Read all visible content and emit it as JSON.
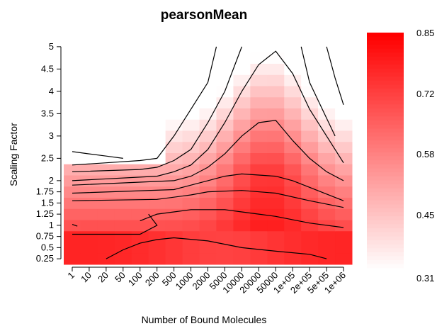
{
  "chart_data": {
    "type": "heatmap",
    "title": "pearsonMean",
    "xlabel": "Number of Bound Molecules",
    "ylabel": "Scaling Factor",
    "x_categories": [
      "1",
      "10",
      "20",
      "50",
      "100",
      "200",
      "500",
      "1000",
      "2000",
      "5000",
      "10000",
      "20000",
      "50000",
      "1e+05",
      "2e+05",
      "5e+05",
      "1e+06"
    ],
    "y_categories": [
      "0.25",
      "0.5",
      "0.75",
      "1",
      "1.25",
      "1.5",
      "1.75",
      "2",
      "2.25",
      "2.5",
      "2.75",
      "3",
      "3.25",
      "3.5",
      "3.75",
      "4",
      "4.25",
      "4.5",
      "4.75",
      "5"
    ],
    "y_tick_labels": [
      "0.25",
      "0.5",
      "0.75",
      "1",
      "1.25",
      "1.5",
      "1.75",
      "2",
      "2.5",
      "3",
      "3.5",
      "4",
      "4.5",
      "5"
    ],
    "y_tick_values": [
      0.25,
      0.5,
      0.75,
      1,
      1.25,
      1.5,
      1.75,
      2,
      2.5,
      3,
      3.5,
      4,
      4.5,
      5
    ],
    "colorbar": {
      "min": 0.31,
      "max": 0.85,
      "tick_labels": [
        "0.85",
        "0.72",
        "0.58",
        "0.45",
        "0.31"
      ],
      "low_color": "#ffffff",
      "high_color": "#ff0000"
    },
    "grid": false,
    "legend": "right colorbar",
    "contour_lines": 10,
    "description_note": ""
  }
}
